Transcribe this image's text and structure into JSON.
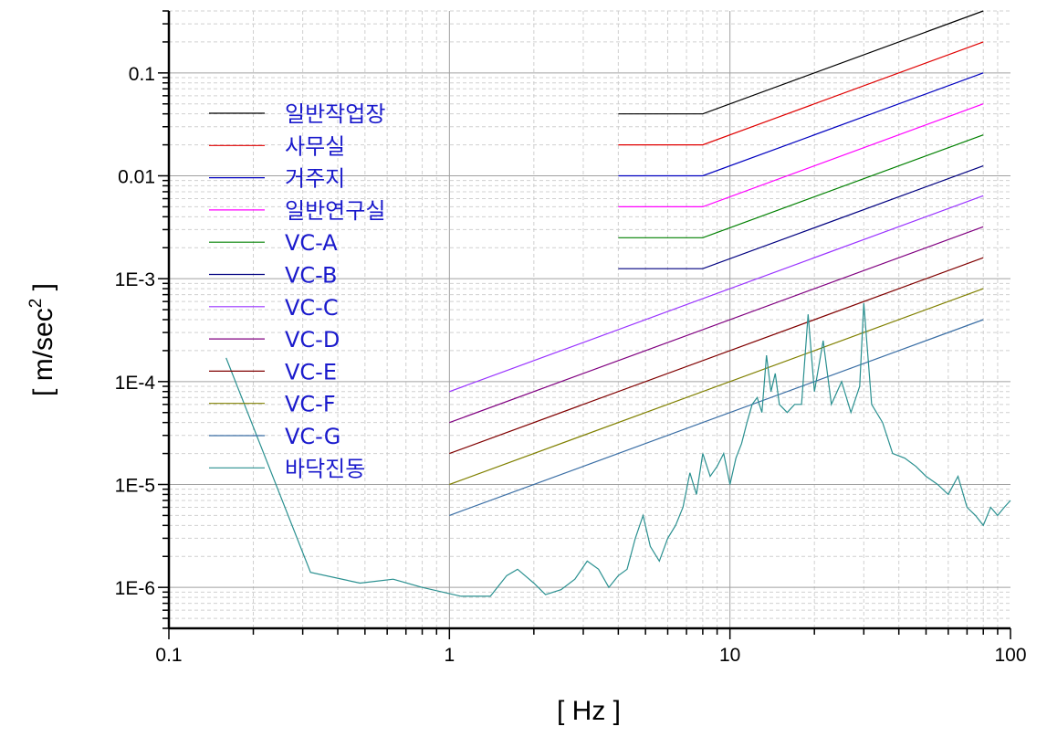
{
  "chart_data": {
    "type": "line",
    "title": "",
    "xlabel": "[ Hz ]",
    "ylabel": "[ m/sec",
    "ylabel_superscript": "2",
    "ylabel_suffix": " ]",
    "x_scale": "log",
    "y_scale": "log",
    "xlim": [
      0.1,
      100
    ],
    "ylim": [
      4e-07,
      0.4
    ],
    "grid": true,
    "legend_position": "upper-left",
    "x_ticks": [
      {
        "value": 0.1,
        "label": "0.1"
      },
      {
        "value": 1,
        "label": "1"
      },
      {
        "value": 10,
        "label": "10"
      },
      {
        "value": 100,
        "label": "100"
      }
    ],
    "y_ticks": [
      {
        "value": 1e-06,
        "label": "1E-6"
      },
      {
        "value": 1e-05,
        "label": "1E-5"
      },
      {
        "value": 0.0001,
        "label": "1E-4"
      },
      {
        "value": 0.001,
        "label": "1E-3"
      },
      {
        "value": 0.01,
        "label": "0.01"
      },
      {
        "value": 0.1,
        "label": "0.1"
      }
    ],
    "series": [
      {
        "name": "일반작업장",
        "color": "#000000",
        "x": [
          4,
          8,
          80
        ],
        "y": [
          0.04,
          0.04,
          0.4
        ]
      },
      {
        "name": "사무실",
        "color": "#e00000",
        "x": [
          4,
          8,
          80
        ],
        "y": [
          0.02,
          0.02,
          0.2
        ]
      },
      {
        "name": "거주지",
        "color": "#0000c0",
        "x": [
          4,
          8,
          80
        ],
        "y": [
          0.01,
          0.01,
          0.1
        ]
      },
      {
        "name": "일반연구실",
        "color": "#ff00ff",
        "x": [
          4,
          8,
          80
        ],
        "y": [
          0.005,
          0.005,
          0.05
        ]
      },
      {
        "name": "VC-A",
        "color": "#008000",
        "x": [
          4,
          8,
          80
        ],
        "y": [
          0.0025,
          0.0025,
          0.025
        ]
      },
      {
        "name": "VC-B",
        "color": "#000080",
        "x": [
          4,
          8,
          80
        ],
        "y": [
          0.00125,
          0.00125,
          0.0125
        ]
      },
      {
        "name": "VC-C",
        "color": "#9933ff",
        "x": [
          1,
          80
        ],
        "y": [
          8e-05,
          0.0064
        ]
      },
      {
        "name": "VC-D",
        "color": "#800080",
        "x": [
          1,
          80
        ],
        "y": [
          4e-05,
          0.0032
        ]
      },
      {
        "name": "VC-E",
        "color": "#800000",
        "x": [
          1,
          80
        ],
        "y": [
          2e-05,
          0.0016
        ]
      },
      {
        "name": "VC-F",
        "color": "#808000",
        "x": [
          1,
          80
        ],
        "y": [
          1e-05,
          0.0008
        ]
      },
      {
        "name": "VC-G",
        "color": "#3a6ea5",
        "x": [
          1,
          80
        ],
        "y": [
          5e-06,
          0.0004
        ]
      },
      {
        "name": "바닥진동",
        "color": "#2a9090",
        "x": [
          0.16,
          0.32,
          0.48,
          0.63,
          0.8,
          1.1,
          1.4,
          1.6,
          1.75,
          2.0,
          2.2,
          2.5,
          2.8,
          3.1,
          3.4,
          3.7,
          4.0,
          4.3,
          4.6,
          4.9,
          5.2,
          5.6,
          6.0,
          6.4,
          6.8,
          7.2,
          7.6,
          8.0,
          8.5,
          9.0,
          9.5,
          10.0,
          10.5,
          11.0,
          11.5,
          12.0,
          12.5,
          13.0,
          13.5,
          14.0,
          14.5,
          15.0,
          16.0,
          17.0,
          18.0,
          19.0,
          20.0,
          21.5,
          23.0,
          25.0,
          27.0,
          29.0,
          30.0,
          32.0,
          35.0,
          38.0,
          42.0,
          46.0,
          50.0,
          55.0,
          60.0,
          65.0,
          70.0,
          75.0,
          80.0,
          85.0,
          90.0,
          95.0,
          100.0
        ],
        "y": [
          0.00017,
          1.4e-06,
          1.1e-06,
          1.2e-06,
          1e-06,
          8.2e-07,
          8.2e-07,
          1.3e-06,
          1.5e-06,
          1.1e-06,
          8.5e-07,
          9.5e-07,
          1.2e-06,
          1.8e-06,
          1.5e-06,
          1e-06,
          1.3e-06,
          1.5e-06,
          3e-06,
          5e-06,
          2.5e-06,
          1.8e-06,
          3e-06,
          4e-06,
          6e-06,
          1.3e-05,
          8e-06,
          2e-05,
          1.2e-05,
          1.5e-05,
          2e-05,
          1e-05,
          1.8e-05,
          2.5e-05,
          4e-05,
          6e-05,
          7e-05,
          5e-05,
          0.00018,
          8e-05,
          0.00012,
          6e-05,
          5e-05,
          6e-05,
          6e-05,
          0.00045,
          8e-05,
          0.00025,
          6e-05,
          0.0001,
          5e-05,
          9e-05,
          0.00058,
          6e-05,
          4e-05,
          2e-05,
          1.8e-05,
          1.5e-05,
          1.2e-05,
          1e-05,
          8e-06,
          1.2e-05,
          6e-06,
          5e-06,
          4e-06,
          6e-06,
          5e-06,
          6e-06,
          7e-06
        ]
      }
    ]
  }
}
